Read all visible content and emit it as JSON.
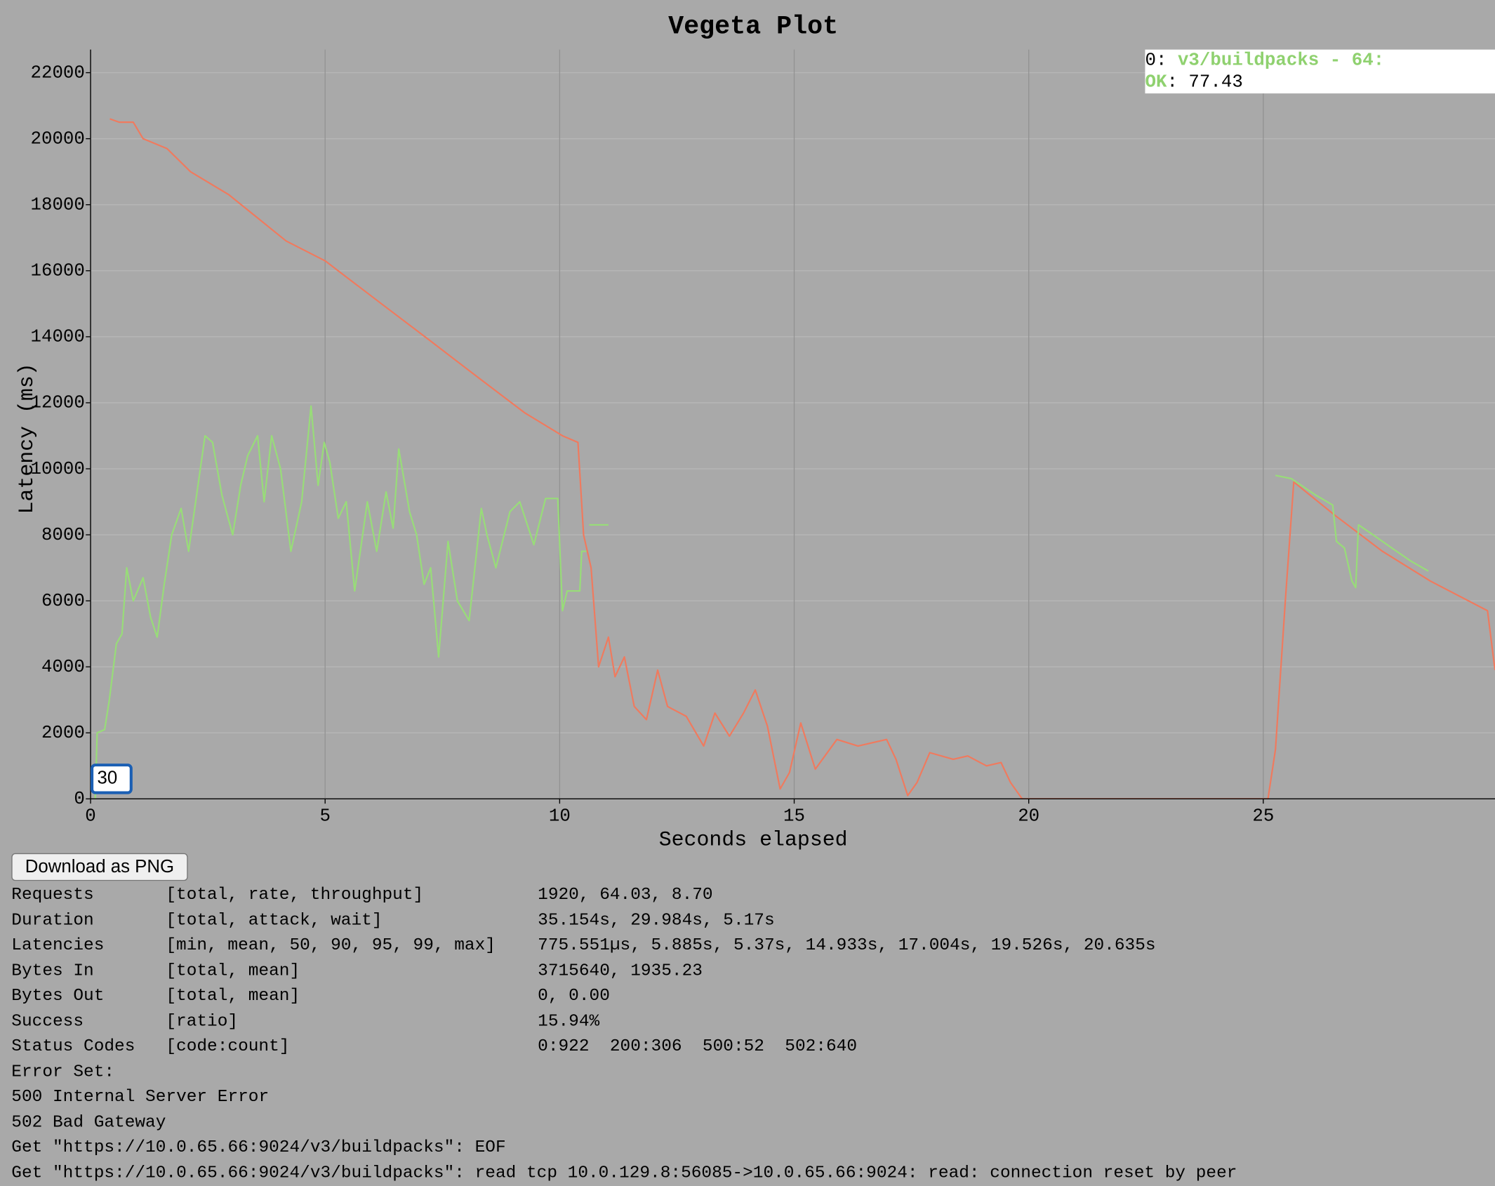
{
  "chart_data": {
    "type": "line",
    "title": "Vegeta Plot",
    "x_label": "Seconds elapsed",
    "y_label": "Latency (ms)",
    "xlim": [
      0,
      29.94
    ],
    "ylim": [
      0,
      22700
    ],
    "xticks": [
      0,
      5,
      10,
      15,
      20,
      25
    ],
    "yticks": [
      0,
      2000,
      4000,
      6000,
      8000,
      10000,
      12000,
      14000,
      16000,
      18000,
      20000,
      22000
    ],
    "grid": true,
    "series": [
      {
        "name": "OK",
        "color": "#98dd78",
        "x": [
          0.1,
          0.14,
          0.3,
          0.4,
          0.55,
          0.67,
          0.77,
          0.91,
          1.12,
          1.28,
          1.42,
          1.57,
          1.73,
          1.93,
          2.09,
          2.24,
          2.44,
          2.6,
          2.8,
          3.03,
          3.2,
          3.35,
          3.56,
          3.7,
          3.86,
          4.05,
          4.27,
          4.5,
          4.7,
          4.85,
          4.98,
          5.1,
          5.28,
          5.45,
          5.63,
          5.9,
          6.1,
          6.3,
          6.45,
          6.57,
          6.8,
          6.95,
          7.11,
          7.25,
          7.42,
          7.62,
          7.82,
          8.07,
          8.33,
          8.45,
          8.64,
          8.94,
          9.15,
          9.45,
          9.7,
          9.96,
          10.06,
          10.16,
          10.43,
          10.47,
          10.57,
          10.6,
          10.63,
          11.04,
          11.1,
          25.26,
          25.6,
          26.12,
          26.48,
          26.56,
          26.73,
          26.89,
          26.97,
          27.03,
          27.34,
          27.74,
          28.15,
          28.52
        ],
        "values": [
          0,
          2000,
          2100,
          3000,
          4700,
          5000,
          7000,
          6000,
          6700,
          5500,
          4900,
          6500,
          8000,
          8800,
          7500,
          9000,
          11000,
          10800,
          9200,
          8000,
          9500,
          10400,
          11000,
          9000,
          11000,
          10000,
          7500,
          9000,
          11900,
          9500,
          10800,
          10200,
          8500,
          9000,
          6300,
          9000,
          7500,
          9300,
          8200,
          10600,
          8700,
          8000,
          6500,
          7000,
          4300,
          7800,
          6000,
          5400,
          8800,
          8000,
          7000,
          8700,
          9000,
          7700,
          9100,
          9100,
          5700,
          6300,
          6300,
          7500,
          7500,
          null,
          8300,
          8300,
          null,
          9800,
          9700,
          9200,
          8900,
          7800,
          7600,
          6600,
          6400,
          8300,
          8000,
          7600,
          7200,
          6900
        ]
      },
      {
        "color": "#f07a5e",
        "x": [
          0.41,
          0.61,
          0.91,
          1.12,
          1.63,
          2.13,
          2.95,
          3.56,
          4.17,
          5,
          6.2,
          7.22,
          8.23,
          9.25,
          10.06,
          10.39,
          10.51,
          10.67,
          10.83,
          11.04,
          11.18,
          11.38,
          11.59,
          11.85,
          12.09,
          12.3,
          12.7,
          13.07,
          13.31,
          13.62,
          13.92,
          14.17,
          14.43,
          14.7,
          14.9,
          15.14,
          15.45,
          15.91,
          16.36,
          16.97,
          17.17,
          17.42,
          17.62,
          17.89,
          18.39,
          18.7,
          19.1,
          19.41,
          19.61,
          19.86,
          25.1,
          25.26,
          25.47,
          25.65,
          26.52,
          27.54,
          28.56,
          29.78,
          29.94
        ],
        "values": [
          20600,
          20500,
          20500,
          20000,
          19700,
          19000,
          18300,
          17600,
          16900,
          16300,
          15000,
          13900,
          12800,
          11700,
          11000,
          10800,
          8000,
          7000,
          4000,
          4900,
          3700,
          4300,
          2800,
          2400,
          3900,
          2800,
          2500,
          1600,
          2600,
          1900,
          2600,
          3300,
          2200,
          300,
          800,
          2300,
          900,
          1800,
          1600,
          1800,
          1200,
          100,
          500,
          1400,
          1200,
          1300,
          1000,
          1100,
          500,
          0,
          0,
          1500,
          6000,
          9600,
          8600,
          7500,
          6600,
          5700,
          3900
        ]
      }
    ]
  },
  "legend": {
    "index": "0: ",
    "label": "v3/buildpacks - 64:",
    "value_label": ": 77.43"
  },
  "zoom_input": "30",
  "download_button": "Download as PNG",
  "report": {
    "rows": [
      [
        "Requests",
        "[total, rate, throughput]",
        "1920, 64.03, 8.70"
      ],
      [
        "Duration",
        "[total, attack, wait]",
        "35.154s, 29.984s, 5.17s"
      ],
      [
        "Latencies",
        "[min, mean, 50, 90, 95, 99, max]",
        "775.551µs, 5.885s, 5.37s, 14.933s, 17.004s, 19.526s, 20.635s"
      ],
      [
        "Bytes In",
        "[total, mean]",
        "3715640, 1935.23"
      ],
      [
        "Bytes Out",
        "[total, mean]",
        "0, 0.00"
      ],
      [
        "Success",
        "[ratio]",
        "15.94%"
      ],
      [
        "Status Codes",
        "[code:count]",
        "0:922  200:306  500:52  502:640"
      ]
    ],
    "error_lines": [
      "Error Set:",
      "500 Internal Server Error",
      "502 Bad Gateway",
      "Get \"https://10.0.65.66:9024/v3/buildpacks\": EOF",
      "Get \"https://10.0.65.66:9024/v3/buildpacks\": read tcp 10.0.129.8:56085->10.0.65.66:9024: read: connection reset by peer"
    ]
  }
}
